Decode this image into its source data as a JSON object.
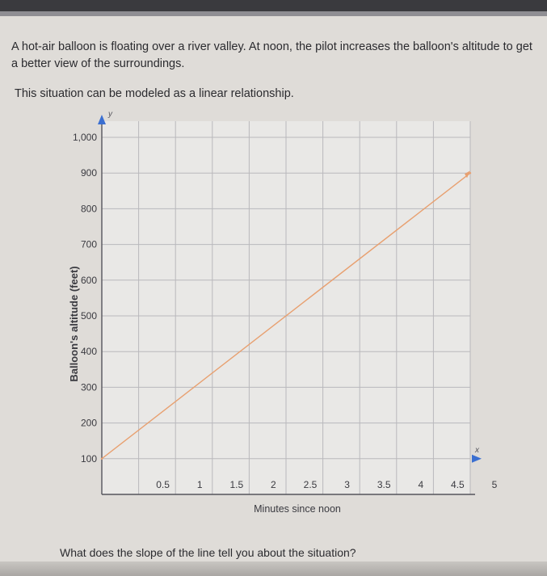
{
  "problem": {
    "text": "A hot-air balloon is floating over a river valley. At noon, the pilot increases the balloon's altitude to get a better view of the surroundings.",
    "model_note": "This situation can be modeled as a linear relationship."
  },
  "question": "What does the slope of the line tell you about the situation?",
  "chart_data": {
    "type": "line",
    "title": "",
    "xlabel": "Minutes since noon",
    "ylabel": "Balloon's altitude (feet)",
    "x_axis_letter": "x",
    "y_axis_letter": "y",
    "xlim": [
      0,
      5
    ],
    "ylim": [
      0,
      1000
    ],
    "grid": true,
    "x_ticks": [
      0.5,
      1,
      1.5,
      2,
      2.5,
      3,
      3.5,
      4,
      4.5,
      5
    ],
    "x_tick_labels": [
      "0.5",
      "1",
      "1.5",
      "2",
      "2.5",
      "3",
      "3.5",
      "4",
      "4.5",
      "5"
    ],
    "y_ticks": [
      100,
      200,
      300,
      400,
      500,
      600,
      700,
      800,
      900,
      1000
    ],
    "y_tick_labels": [
      "100",
      "200",
      "300",
      "400",
      "500",
      "600",
      "700",
      "800",
      "900",
      "1,000"
    ],
    "series": [
      {
        "color": "#e8a070",
        "x": [
          0,
          5
        ],
        "y": [
          100,
          900
        ]
      }
    ]
  }
}
